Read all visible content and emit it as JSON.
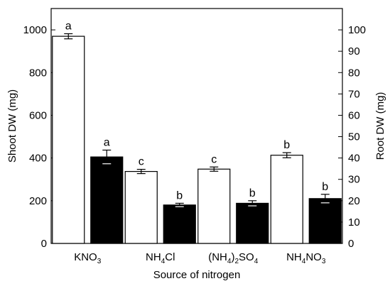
{
  "chart_data": {
    "type": "bar",
    "xlabel": "Source of nitrogen",
    "ylabel": "Shoot DW (mg)",
    "y2label": "Root DW (mg)",
    "ylim": [
      0,
      1100
    ],
    "y2lim": [
      0,
      110
    ],
    "yticks": [
      0,
      200,
      400,
      600,
      800,
      1000
    ],
    "y2ticks": [
      0,
      10,
      20,
      30,
      40,
      50,
      60,
      70,
      80,
      90,
      100
    ],
    "categories": [
      {
        "base": "KNO",
        "parts": [
          [
            "KNO",
            ""
          ],
          [
            "3",
            "sub"
          ]
        ]
      },
      {
        "base": "NH4Cl",
        "parts": [
          [
            "NH",
            ""
          ],
          [
            "4",
            "sub"
          ],
          [
            "Cl",
            ""
          ]
        ]
      },
      {
        "base": "(NH4)2SO4",
        "parts": [
          [
            "(NH",
            ""
          ],
          [
            "4",
            "sub"
          ],
          [
            ")",
            ""
          ],
          [
            "2",
            "sub"
          ],
          [
            "SO",
            ""
          ],
          [
            "4",
            "sub"
          ]
        ]
      },
      {
        "base": "NH4NO3",
        "parts": [
          [
            "NH",
            ""
          ],
          [
            "4",
            "sub"
          ],
          [
            "NO",
            ""
          ],
          [
            "3",
            "sub"
          ]
        ]
      }
    ],
    "series": [
      {
        "axis": "left",
        "fill": "#ffffff",
        "values": [
          970,
          337,
          348,
          413
        ],
        "errors": [
          12,
          10,
          10,
          12
        ],
        "labels": [
          "a",
          "c",
          "c",
          "b"
        ]
      },
      {
        "axis": "right",
        "fill": "#000000",
        "values": [
          40.5,
          18,
          18.8,
          21
        ],
        "errors": [
          3.2,
          0.8,
          1.2,
          2.0
        ],
        "labels": [
          "a",
          "b",
          "b",
          "b"
        ]
      }
    ],
    "colors": {
      "axis": "#000000",
      "open_bar": "#ffffff",
      "filled_bar": "#000000"
    }
  }
}
